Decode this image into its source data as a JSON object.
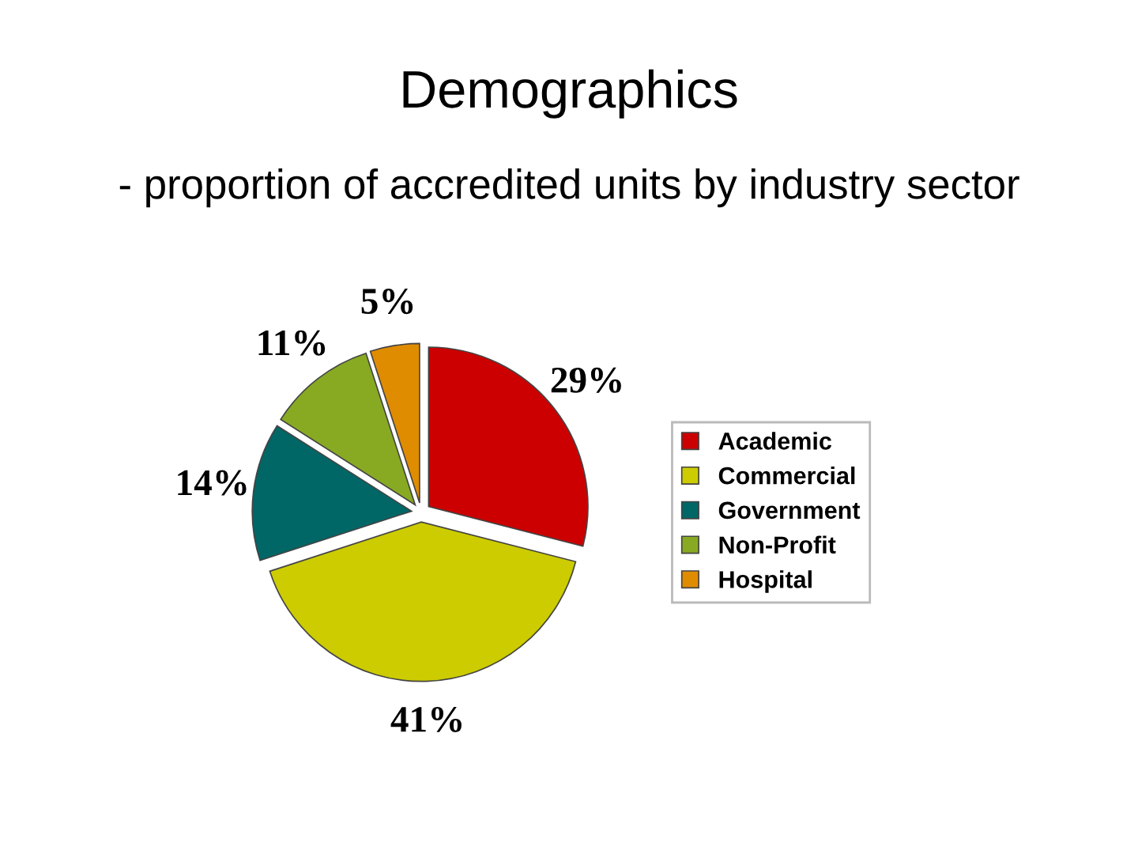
{
  "chart_data": {
    "type": "pie",
    "title": "Demographics",
    "subtitle": "- proportion of accredited units by industry sector",
    "categories": [
      "Academic",
      "Commercial",
      "Government",
      "Non-Profit",
      "Hospital"
    ],
    "values": [
      29,
      41,
      14,
      11,
      5
    ],
    "value_labels": [
      "29%",
      "41%",
      "14%",
      "11%",
      "5%"
    ],
    "colors": [
      "#cc0000",
      "#cccc00",
      "#006666",
      "#88aa22",
      "#e08c00"
    ],
    "legend": "right"
  }
}
